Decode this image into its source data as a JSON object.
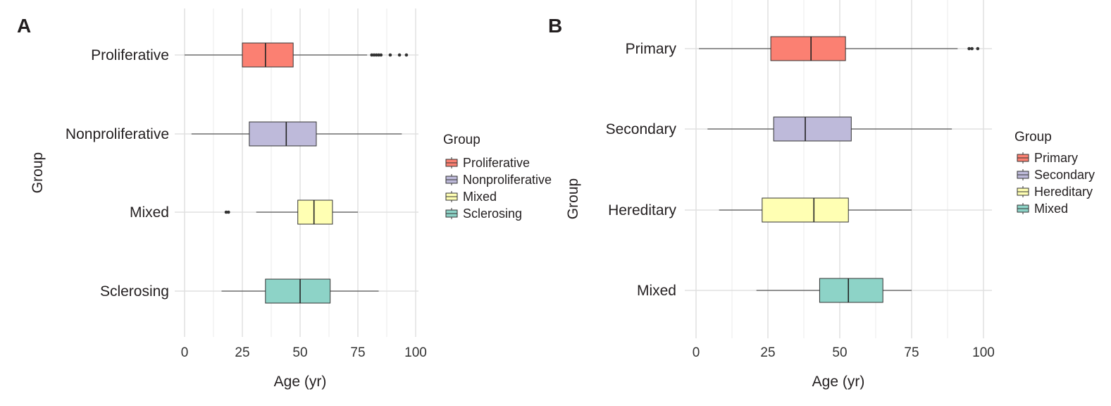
{
  "chart_data": [
    {
      "panel": "A",
      "type": "boxplot",
      "orientation": "horizontal",
      "xlabel": "Age (yr)",
      "ylabel": "Group",
      "xlim": [
        0,
        100
      ],
      "xticks": [
        0,
        25,
        50,
        75,
        100
      ],
      "grid": true,
      "legend_title": "Group",
      "legend_placement": "right",
      "categories": [
        "Proliferative",
        "Nonproliferative",
        "Mixed",
        "Sclerosing"
      ],
      "series": [
        {
          "name": "Proliferative",
          "color": "#fb8072",
          "whisker_low": 0,
          "q1": 25,
          "median": 35,
          "q3": 47,
          "whisker_high": 79,
          "outliers": [
            81,
            82,
            83,
            84,
            85,
            89,
            93,
            96
          ]
        },
        {
          "name": "Nonproliferative",
          "color": "#bebada",
          "whisker_low": 3,
          "q1": 28,
          "median": 44,
          "q3": 57,
          "whisker_high": 94,
          "outliers": []
        },
        {
          "name": "Mixed",
          "color": "#ffffb3",
          "whisker_low": 31,
          "q1": 49,
          "median": 56,
          "q3": 64,
          "whisker_high": 75,
          "outliers": [
            18,
            19
          ]
        },
        {
          "name": "Sclerosing",
          "color": "#8dd3c7",
          "whisker_low": 16,
          "q1": 35,
          "median": 50,
          "q3": 63,
          "whisker_high": 84,
          "outliers": []
        }
      ]
    },
    {
      "panel": "B",
      "type": "boxplot",
      "orientation": "horizontal",
      "xlabel": "Age (yr)",
      "ylabel": "Group",
      "xlim": [
        0,
        100
      ],
      "xticks": [
        0,
        25,
        50,
        75,
        100
      ],
      "grid": true,
      "legend_title": "Group",
      "legend_placement": "right",
      "categories": [
        "Primary",
        "Secondary",
        "Hereditary",
        "Mixed"
      ],
      "series": [
        {
          "name": "Primary",
          "color": "#fb8072",
          "whisker_low": 1,
          "q1": 26,
          "median": 40,
          "q3": 52,
          "whisker_high": 91,
          "outliers": [
            95,
            96,
            98
          ]
        },
        {
          "name": "Secondary",
          "color": "#bebada",
          "whisker_low": 4,
          "q1": 27,
          "median": 38,
          "q3": 54,
          "whisker_high": 89,
          "outliers": []
        },
        {
          "name": "Hereditary",
          "color": "#ffffb3",
          "whisker_low": 8,
          "q1": 23,
          "median": 41,
          "q3": 53,
          "whisker_high": 75,
          "outliers": []
        },
        {
          "name": "Mixed",
          "color": "#8dd3c7",
          "whisker_low": 21,
          "q1": 43,
          "median": 53,
          "q3": 65,
          "whisker_high": 75,
          "outliers": []
        }
      ]
    }
  ]
}
